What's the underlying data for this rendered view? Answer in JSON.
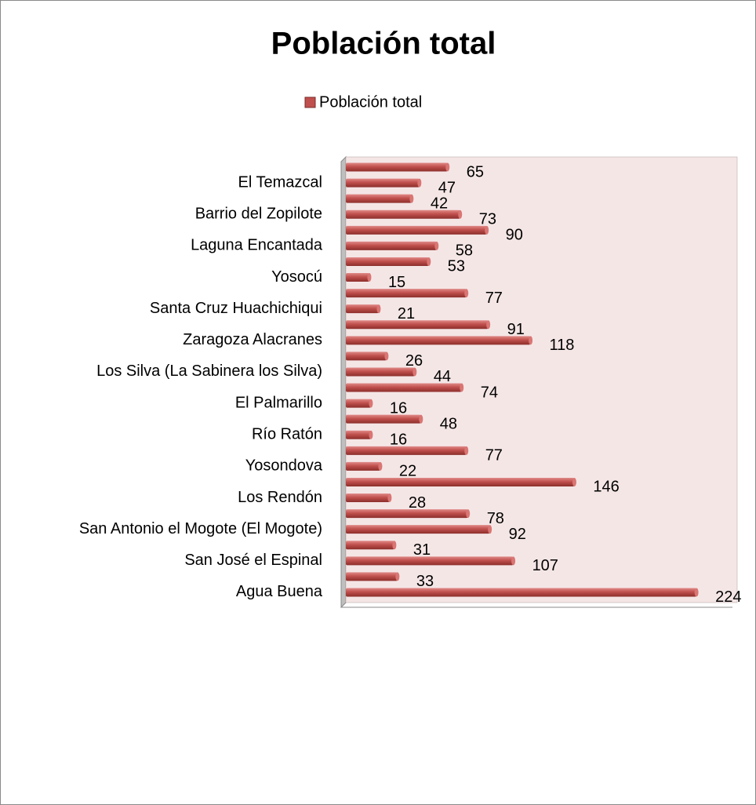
{
  "chart_data": {
    "type": "bar",
    "orientation": "horizontal",
    "title": "Población total",
    "legend": "top",
    "series": [
      {
        "name": "Población total",
        "color": "#c0504d",
        "values": [
          65,
          47,
          42,
          73,
          90,
          58,
          53,
          15,
          77,
          21,
          91,
          118,
          26,
          44,
          74,
          16,
          48,
          16,
          77,
          22,
          146,
          28,
          78,
          92,
          31,
          107,
          33,
          224
        ]
      }
    ],
    "categories": [
      null,
      "El Temazcal",
      null,
      "Barrio del Zopilote",
      null,
      "Laguna Encantada",
      null,
      "Yosocú",
      null,
      "Santa Cruz Huachichiqui",
      null,
      "Zaragoza Alacranes",
      null,
      "Los Silva (La Sabinera los Silva)",
      null,
      "El Palmarillo",
      null,
      "Río Ratón",
      null,
      "Yosondova",
      null,
      "Los Rendón",
      null,
      "San Antonio el Mogote (El Mogote)",
      null,
      "San José el Espinal",
      null,
      "Agua Buena"
    ],
    "xlim": [
      0,
      250
    ]
  }
}
